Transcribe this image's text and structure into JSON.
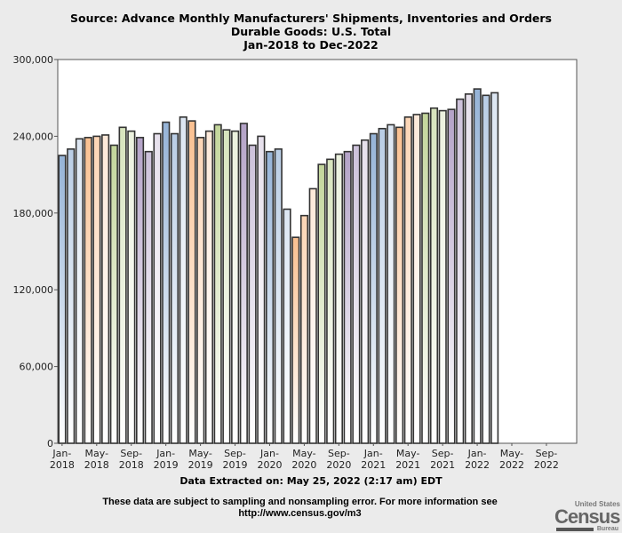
{
  "chart_data": {
    "type": "bar",
    "title": [
      "Source: Advance Monthly Manufacturers' Shipments, Inventories and Orders",
      "Durable Goods: U.S. Total",
      "Jan-2018 to Dec-2022"
    ],
    "xlabel": "",
    "ylabel": "",
    "ylim": [
      0,
      300000
    ],
    "yticks": [
      "0",
      "60,000",
      "120,000",
      "180,000",
      "240,000",
      "300,000"
    ],
    "ytick_values": [
      0,
      60000,
      120000,
      180000,
      240000,
      300000
    ],
    "xticks": [
      [
        "Jan-",
        "2018"
      ],
      [
        "May-",
        "2018"
      ],
      [
        "Sep-",
        "2018"
      ],
      [
        "Jan-",
        "2019"
      ],
      [
        "May-",
        "2019"
      ],
      [
        "Sep-",
        "2019"
      ],
      [
        "Jan-",
        "2020"
      ],
      [
        "May-",
        "2020"
      ],
      [
        "Sep-",
        "2020"
      ],
      [
        "Jan-",
        "2021"
      ],
      [
        "May-",
        "2021"
      ],
      [
        "Sep-",
        "2021"
      ],
      [
        "Jan-",
        "2022"
      ],
      [
        "May-",
        "2022"
      ],
      [
        "Sep-",
        "2022"
      ]
    ],
    "total_months": 60,
    "categories": [
      "Jan-2018",
      "Feb-2018",
      "Mar-2018",
      "Apr-2018",
      "May-2018",
      "Jun-2018",
      "Jul-2018",
      "Aug-2018",
      "Sep-2018",
      "Oct-2018",
      "Nov-2018",
      "Dec-2018",
      "Jan-2019",
      "Feb-2019",
      "Mar-2019",
      "Apr-2019",
      "May-2019",
      "Jun-2019",
      "Jul-2019",
      "Aug-2019",
      "Sep-2019",
      "Oct-2019",
      "Nov-2019",
      "Dec-2019",
      "Jan-2020",
      "Feb-2020",
      "Mar-2020",
      "Apr-2020",
      "May-2020",
      "Jun-2020",
      "Jul-2020",
      "Aug-2020",
      "Sep-2020",
      "Oct-2020",
      "Nov-2020",
      "Dec-2020",
      "Jan-2021",
      "Feb-2021",
      "Mar-2021",
      "Apr-2021",
      "May-2021",
      "Jun-2021",
      "Jul-2021",
      "Aug-2021",
      "Sep-2021",
      "Oct-2021",
      "Nov-2021",
      "Dec-2021",
      "Jan-2022",
      "Feb-2022",
      "Mar-2022"
    ],
    "values": [
      225000,
      230000,
      238000,
      239000,
      240000,
      241000,
      233000,
      247000,
      244000,
      239000,
      228000,
      242000,
      251000,
      242000,
      255000,
      252000,
      239000,
      244000,
      249000,
      245000,
      244000,
      250000,
      233000,
      240000,
      228000,
      230000,
      183000,
      161000,
      178000,
      199000,
      218000,
      222000,
      226000,
      228000,
      233000,
      237000,
      242000,
      246000,
      249000,
      247000,
      255000,
      257000,
      258000,
      262000,
      260000,
      261000,
      269000,
      273000,
      277000,
      272000,
      274000
    ],
    "colors": [
      "#95b3d7",
      "#b9cde5",
      "#dce6f2",
      "#fac090",
      "#fcd5b5",
      "#fde9d9",
      "#c3d69b",
      "#d7e4bd",
      "#ebf1de",
      "#b3a2c7",
      "#ccc1da",
      "#e6e0ec"
    ],
    "grid": false,
    "legend": "none"
  },
  "footer": {
    "extracted": "Data Extracted on: May 25, 2022 (2:17 am) EDT",
    "note_line1": "These data are subject to sampling and nonsampling error. For more information see",
    "note_line2": "http://www.census.gov/m3"
  },
  "logo": {
    "top": "United States",
    "main": "Census",
    "bottom": "Bureau"
  }
}
